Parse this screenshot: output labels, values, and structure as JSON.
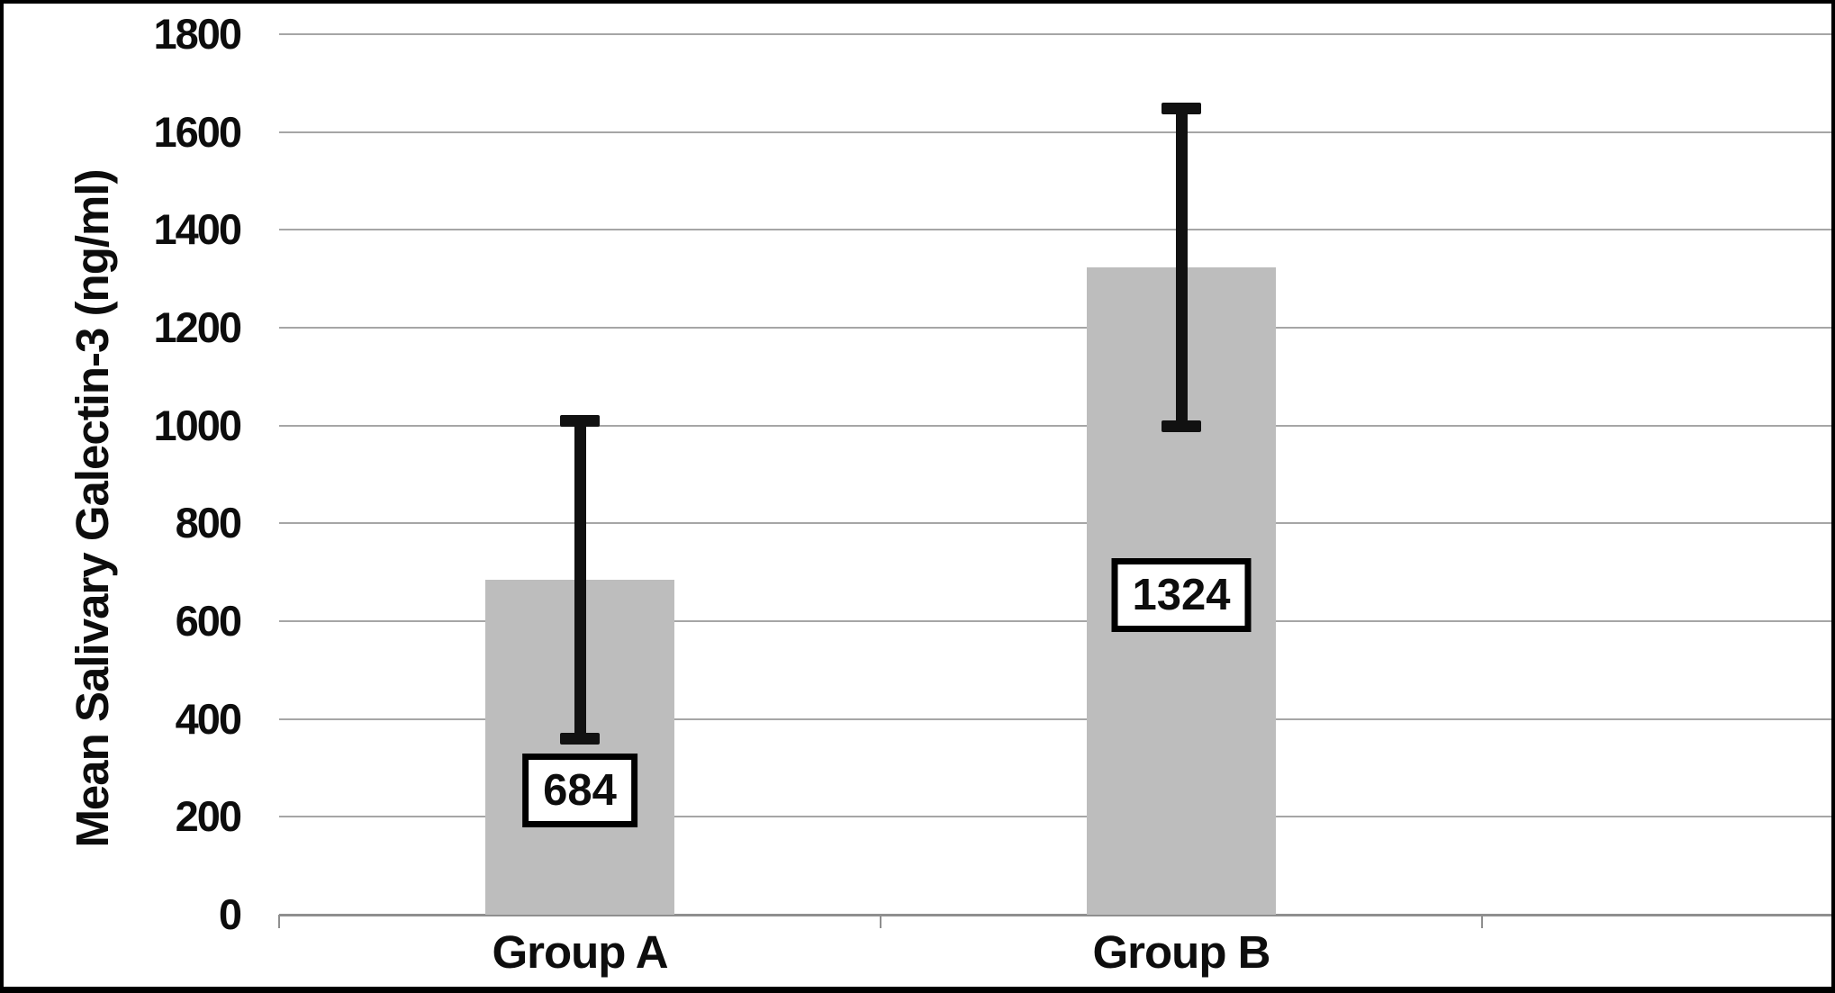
{
  "figure": {
    "ylabel": "Mean Salivary Galectin-3 (ng/ml)"
  },
  "chart_data": {
    "type": "bar",
    "categories": [
      "Group A",
      "Group B"
    ],
    "values": [
      684,
      1324
    ],
    "error": [
      325,
      325
    ],
    "value_labels": [
      "684",
      "1324"
    ],
    "title": "",
    "xlabel": "",
    "ylabel": "Mean Salivary Galectin-3 (ng/ml)",
    "ylim": [
      0,
      1800
    ],
    "yticks": [
      0,
      200,
      400,
      600,
      800,
      1000,
      1200,
      1400,
      1600,
      1800
    ],
    "grid": "horizontal-only",
    "legend": "none",
    "colors": {
      "bar_fill": "#bdbdbd",
      "error_bar": "#111111",
      "gridline": "#a6a6a6",
      "text": "#0d0d0d",
      "label_box_fill": "#ffffff",
      "label_box_border": "#000000",
      "frame_border": "#000000"
    }
  }
}
